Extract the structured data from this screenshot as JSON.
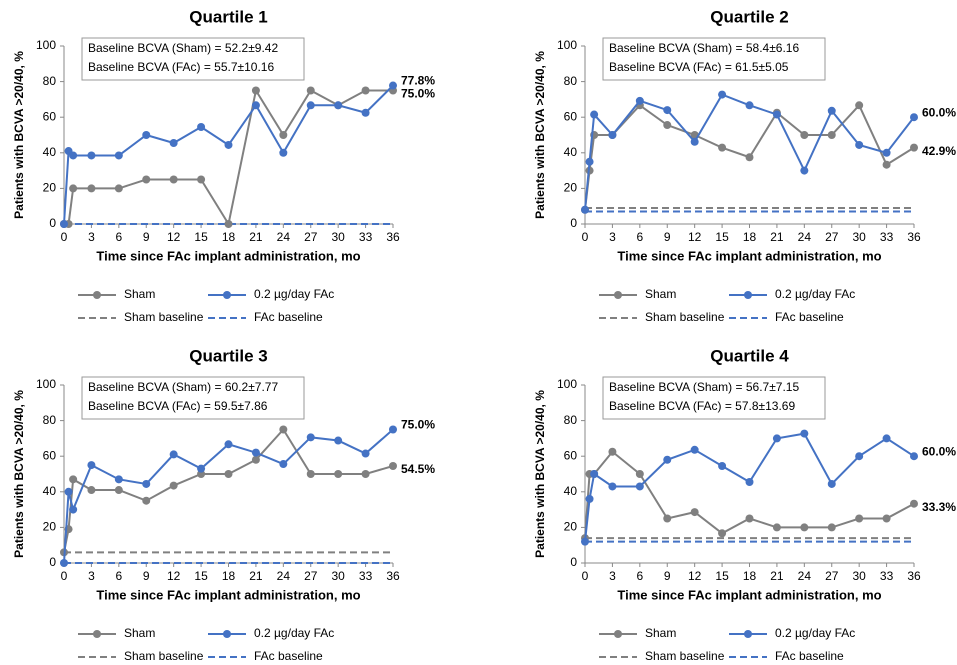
{
  "chart_data": [
    {
      "type": "line",
      "title": "Quartile 1",
      "xlabel": "Time since FAc implant administration, mo",
      "ylabel": "Patients with BCVA >20/40, %",
      "annotations": [
        {
          "text": "Baseline BCVA (Sham) = 52.2±9.42",
          "color": "#808080"
        },
        {
          "text": "Baseline BCVA (FAc) = 55.7±10.16",
          "color": "#4472c4"
        }
      ],
      "x": [
        0,
        0.5,
        1,
        3,
        6,
        9,
        12,
        15,
        18,
        21,
        24,
        27,
        30,
        33,
        36
      ],
      "series": [
        {
          "name": "Sham",
          "color": "#808080",
          "values": [
            0,
            0,
            20,
            20,
            20,
            25,
            25,
            25,
            0,
            75,
            50,
            75,
            66.7,
            75,
            75
          ],
          "value_labels": [
            null,
            null,
            null,
            null,
            null,
            null,
            null,
            null,
            null,
            null,
            null,
            null,
            null,
            null,
            "75.0%"
          ]
        },
        {
          "name": "0.2 µg/day FAc",
          "color": "#4472c4",
          "values": [
            0,
            41,
            38.5,
            38.5,
            38.5,
            50,
            45.5,
            54.5,
            44.4,
            66.7,
            40,
            66.7,
            66.7,
            62.5,
            77.8
          ],
          "value_labels": [
            null,
            null,
            null,
            null,
            null,
            null,
            null,
            null,
            null,
            null,
            null,
            null,
            null,
            null,
            "77.8%"
          ]
        }
      ],
      "reference_lines": [
        {
          "name": "Sham baseline",
          "color": "#808080",
          "value": 0
        },
        {
          "name": "FAc baseline",
          "color": "#4472c4",
          "value": 0
        }
      ],
      "xlim": [
        0,
        36
      ],
      "xticks": [
        0,
        3,
        6,
        9,
        12,
        15,
        18,
        21,
        24,
        27,
        30,
        33,
        36
      ],
      "ylim": [
        0,
        100
      ],
      "yticks": [
        0,
        20,
        40,
        60,
        80,
        100
      ]
    },
    {
      "type": "line",
      "title": "Quartile 2",
      "xlabel": "Time since FAc implant administration, mo",
      "ylabel": "Patients with BCVA >20/40, %",
      "annotations": [
        {
          "text": "Baseline BCVA (Sham) = 58.4±6.16",
          "color": "#808080"
        },
        {
          "text": "Baseline BCVA (FAc) = 61.5±5.05",
          "color": "#4472c4"
        }
      ],
      "x": [
        0,
        0.5,
        1,
        3,
        6,
        9,
        12,
        15,
        18,
        21,
        24,
        27,
        30,
        33,
        36
      ],
      "series": [
        {
          "name": "Sham",
          "color": "#808080",
          "values": [
            8,
            30,
            50,
            50,
            66.7,
            55.6,
            50,
            42.9,
            37.5,
            62.5,
            50,
            50,
            66.7,
            33.3,
            42.9
          ],
          "value_labels": [
            null,
            null,
            null,
            null,
            null,
            null,
            null,
            null,
            null,
            null,
            null,
            null,
            null,
            null,
            "42.9%"
          ]
        },
        {
          "name": "0.2 µg/day FAc",
          "color": "#4472c4",
          "values": [
            8,
            35,
            61.5,
            50,
            69.2,
            64,
            46.2,
            72.7,
            66.7,
            61.5,
            30,
            63.6,
            44.4,
            40,
            60
          ],
          "value_labels": [
            null,
            null,
            null,
            null,
            null,
            null,
            null,
            null,
            null,
            null,
            null,
            null,
            null,
            null,
            "60.0%"
          ]
        }
      ],
      "reference_lines": [
        {
          "name": "Sham baseline",
          "color": "#808080",
          "value": 9
        },
        {
          "name": "FAc baseline",
          "color": "#4472c4",
          "value": 7
        }
      ],
      "xlim": [
        0,
        36
      ],
      "xticks": [
        0,
        3,
        6,
        9,
        12,
        15,
        18,
        21,
        24,
        27,
        30,
        33,
        36
      ],
      "ylim": [
        0,
        100
      ],
      "yticks": [
        0,
        20,
        40,
        60,
        80,
        100
      ]
    },
    {
      "type": "line",
      "title": "Quartile 3",
      "xlabel": "Time since FAc implant administration, mo",
      "ylabel": "Patients with BCVA >20/40, %",
      "annotations": [
        {
          "text": "Baseline BCVA (Sham) = 60.2±7.77",
          "color": "#808080"
        },
        {
          "text": "Baseline BCVA (FAc) = 59.5±7.86",
          "color": "#4472c4"
        }
      ],
      "x": [
        0,
        0.5,
        1,
        3,
        6,
        9,
        12,
        15,
        18,
        21,
        24,
        27,
        30,
        33,
        36
      ],
      "series": [
        {
          "name": "Sham",
          "color": "#808080",
          "values": [
            6,
            19,
            47,
            41,
            41,
            35,
            43.5,
            50,
            50,
            58,
            75,
            50,
            50,
            50,
            54.5
          ],
          "value_labels": [
            null,
            null,
            null,
            null,
            null,
            null,
            null,
            null,
            null,
            null,
            null,
            null,
            null,
            null,
            "54.5%"
          ]
        },
        {
          "name": "0.2 µg/day FAc",
          "color": "#4472c4",
          "values": [
            0,
            40,
            30,
            55,
            47,
            44.4,
            61,
            53,
            66.7,
            62,
            55.6,
            70.6,
            68.8,
            61.5,
            75
          ],
          "value_labels": [
            null,
            null,
            null,
            null,
            null,
            null,
            null,
            null,
            null,
            null,
            null,
            null,
            null,
            null,
            "75.0%"
          ]
        }
      ],
      "reference_lines": [
        {
          "name": "Sham baseline",
          "color": "#808080",
          "value": 6
        },
        {
          "name": "FAc baseline",
          "color": "#4472c4",
          "value": 0
        }
      ],
      "xlim": [
        0,
        36
      ],
      "xticks": [
        0,
        3,
        6,
        9,
        12,
        15,
        18,
        21,
        24,
        27,
        30,
        33,
        36
      ],
      "ylim": [
        0,
        100
      ],
      "yticks": [
        0,
        20,
        40,
        60,
        80,
        100
      ]
    },
    {
      "type": "line",
      "title": "Quartile 4",
      "xlabel": "Time since FAc implant administration, mo",
      "ylabel": "Patients with BCVA >20/40, %",
      "annotations": [
        {
          "text": "Baseline BCVA (Sham) = 56.7±7.15",
          "color": "#808080"
        },
        {
          "text": "Baseline BCVA (FAc) = 57.8±13.69",
          "color": "#4472c4"
        }
      ],
      "x": [
        0,
        0.5,
        1,
        3,
        6,
        9,
        12,
        15,
        18,
        21,
        24,
        27,
        30,
        33,
        36
      ],
      "series": [
        {
          "name": "Sham",
          "color": "#808080",
          "values": [
            14,
            50,
            50,
            62.5,
            50,
            25,
            28.6,
            16.7,
            25,
            20,
            20,
            20,
            25,
            25,
            33.3
          ],
          "value_labels": [
            null,
            null,
            null,
            null,
            null,
            null,
            null,
            null,
            null,
            null,
            null,
            null,
            null,
            null,
            "33.3%"
          ]
        },
        {
          "name": "0.2 µg/day FAc",
          "color": "#4472c4",
          "values": [
            12,
            36,
            50,
            43,
            43,
            58,
            63.6,
            54.5,
            45.5,
            70,
            72.7,
            44.4,
            60,
            70,
            60
          ],
          "value_labels": [
            null,
            null,
            null,
            null,
            null,
            null,
            null,
            null,
            null,
            null,
            null,
            null,
            null,
            null,
            "60.0%"
          ]
        }
      ],
      "reference_lines": [
        {
          "name": "Sham baseline",
          "color": "#808080",
          "value": 14
        },
        {
          "name": "FAc baseline",
          "color": "#4472c4",
          "value": 12
        }
      ],
      "xlim": [
        0,
        36
      ],
      "xticks": [
        0,
        3,
        6,
        9,
        12,
        15,
        18,
        21,
        24,
        27,
        30,
        33,
        36
      ],
      "ylim": [
        0,
        100
      ],
      "yticks": [
        0,
        20,
        40,
        60,
        80,
        100
      ]
    }
  ]
}
